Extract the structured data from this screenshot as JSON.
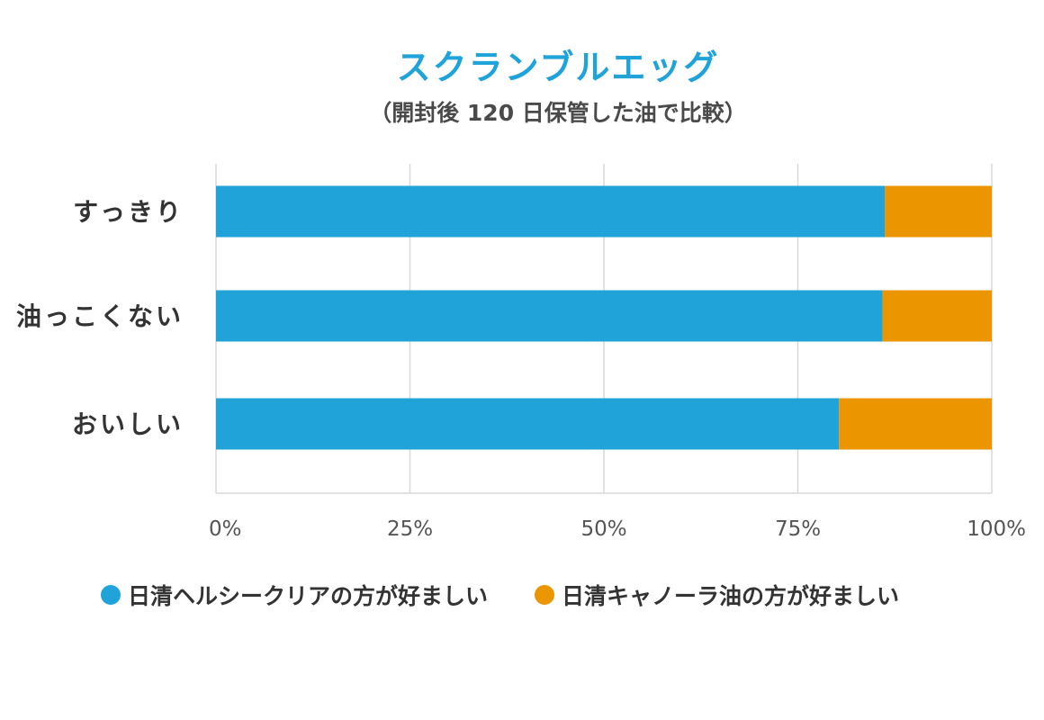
{
  "chart_data": {
    "type": "bar",
    "orientation": "horizontal",
    "stacked": true,
    "title": "スクランブルエッグ",
    "subtitle": "（開封後 120 日保管した油で比較）",
    "categories": [
      "すっきり",
      "油っこくない",
      "おいしい"
    ],
    "series": [
      {
        "name": "日清ヘルシークリアの方が好ましい",
        "color": "#1fa3d9",
        "values": [
          86.2,
          85.9,
          80.3
        ]
      },
      {
        "name": "日清キャノーラ油の方が好ましい",
        "color": "#eb9500",
        "values": [
          13.8,
          14.1,
          19.7
        ]
      }
    ],
    "xlim": [
      0,
      100
    ],
    "x_ticks": [
      "0%",
      "25%",
      "50%",
      "75%",
      "100%"
    ],
    "x_tick_values": [
      0,
      25,
      50,
      75,
      100
    ],
    "grid": "vertical",
    "legend": "bottom"
  }
}
